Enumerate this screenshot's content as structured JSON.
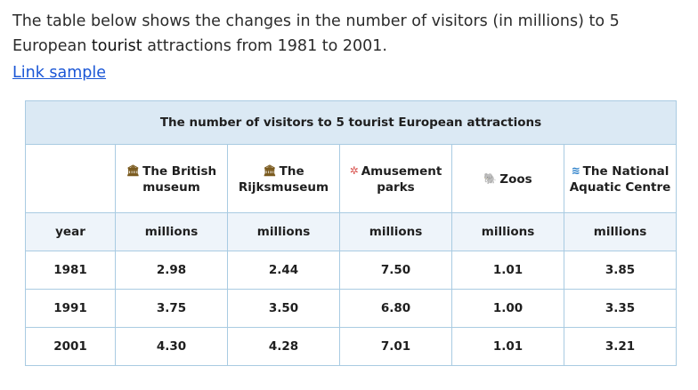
{
  "intro": {
    "text_before": "The table below shows the changes in the number of visitors (in millions) to 5 European ",
    "highlight": "tourist",
    "text_after": " attractions from 1981 to 2001."
  },
  "link_label": "Link sample",
  "table": {
    "caption": "The number of visitors to 5 tourist European attractions",
    "columns": [
      {
        "label": "The British museum",
        "icon": "museum-icon"
      },
      {
        "label": "The Rijksmuseum",
        "icon": "museum-icon"
      },
      {
        "label": "Amusement parks",
        "icon": "ferris-wheel-icon"
      },
      {
        "label": "Zoos",
        "icon": "elephant-icon"
      },
      {
        "label": "The National Aquatic Centre",
        "icon": "wave-icon"
      }
    ],
    "unit_row": {
      "label": "year",
      "units": [
        "millions",
        "millions",
        "millions",
        "millions",
        "millions"
      ]
    },
    "rows": [
      {
        "year": "1981",
        "values": [
          "2.98",
          "2.44",
          "7.50",
          "1.01",
          "3.85"
        ]
      },
      {
        "year": "1991",
        "values": [
          "3.75",
          "3.50",
          "6.80",
          "1.00",
          "3.35"
        ]
      },
      {
        "year": "2001",
        "values": [
          "4.30",
          "4.28",
          "7.01",
          "1.01",
          "3.21"
        ]
      }
    ]
  }
}
